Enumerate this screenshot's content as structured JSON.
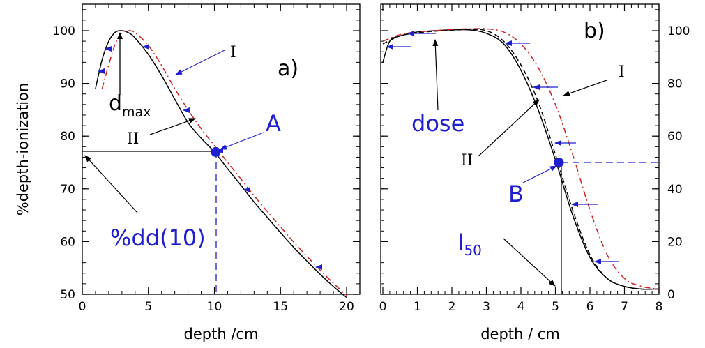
{
  "chart_data": [
    {
      "type": "line",
      "panel_label": "a)",
      "xlabel": "depth /cm",
      "ylabel": "%depth-ionization",
      "xlim": [
        0,
        21
      ],
      "ylim": [
        50,
        105
      ],
      "xticks": [
        "0",
        "5",
        "10",
        "15",
        "20"
      ],
      "yticks": [
        "50",
        "60",
        "70",
        "80",
        "90",
        "100"
      ],
      "series": [
        {
          "name": "",
          "color": "#000000",
          "style": "solid",
          "x": [
            1.0,
            1.5,
            2.0,
            2.5,
            3.0,
            3.5,
            4.0,
            5.0,
            6.0,
            7.0,
            8.0,
            9.0,
            10.0,
            11.0,
            12.0,
            13.0,
            14.0,
            15.0,
            16.0,
            17.0,
            18.0,
            19.0,
            20.0
          ],
          "y": [
            89,
            94.5,
            98,
            99.7,
            100,
            99.6,
            98.6,
            95.5,
            91.5,
            87.0,
            82.6,
            79.6,
            77.0,
            73.8,
            70.7,
            67.5,
            64.6,
            61.7,
            58.9,
            56.3,
            53.8,
            51.5,
            49.4
          ]
        },
        {
          "name": "",
          "color": "#d02020",
          "style": "dashed",
          "x": [
            1.5,
            2.0,
            2.5,
            3.0,
            3.5,
            4.0,
            5.0,
            6.0,
            7.0,
            8.0,
            9.0,
            10.0,
            11.0,
            12.0,
            13.0,
            14.0,
            15.0,
            16.0,
            17.0,
            18.0,
            19.0,
            20.0
          ],
          "y": [
            89,
            93.5,
            97.5,
            99.6,
            100,
            99.6,
            97.2,
            93.4,
            89.0,
            85.0,
            81.4,
            78.2,
            75.0,
            71.9,
            68.7,
            65.7,
            62.8,
            59.9,
            57.2,
            54.6,
            52.1,
            49.8
          ]
        }
      ],
      "points": [
        {
          "label": "A",
          "x": 10.1,
          "y": 77
        }
      ],
      "annotations": {
        "I": "I",
        "II": "II",
        "A": "A",
        "dmax_main": "d",
        "dmax_sub": "max",
        "pdd": "%dd(10)"
      }
    },
    {
      "type": "line",
      "panel_label": "b)",
      "xlabel": "depth / cm",
      "xlim": [
        0,
        8
      ],
      "ylim": [
        0,
        110
      ],
      "xticks": [
        "0",
        "1",
        "2",
        "3",
        "4",
        "5",
        "6",
        "7",
        "8"
      ],
      "yticks": [
        "0",
        "20",
        "40",
        "60",
        "80",
        "100"
      ],
      "series": [
        {
          "name": "",
          "color": "#000000",
          "style": "solid",
          "x": [
            0.0,
            0.2,
            0.5,
            1.0,
            1.5,
            2.0,
            2.5,
            3.0,
            3.5,
            4.0,
            4.5,
            5.0,
            5.5,
            6.0,
            6.5,
            7.0,
            7.5,
            8.0
          ],
          "y": [
            88,
            96,
            98,
            99.5,
            100,
            100.3,
            100.3,
            99,
            95,
            85,
            70,
            51,
            30,
            14,
            6,
            3,
            2,
            2
          ]
        },
        {
          "name": "",
          "color": "#000000",
          "style": "dashed",
          "x": [
            0.0,
            0.5,
            1.0,
            1.5,
            2.0,
            2.5,
            3.0,
            3.5,
            4.0,
            4.5,
            5.0,
            5.5,
            6.0,
            6.5,
            7.0,
            7.5,
            8.0
          ],
          "y": [
            95,
            98,
            99.2,
            99.8,
            100.2,
            100.4,
            100,
            96,
            87,
            73,
            53,
            32,
            15,
            6,
            3,
            2,
            2
          ]
        },
        {
          "name": "",
          "color": "#d02020",
          "style": "dashed",
          "x": [
            0.0,
            0.5,
            1.0,
            1.5,
            2.0,
            2.5,
            3.0,
            3.5,
            4.0,
            4.5,
            5.0,
            5.5,
            6.0,
            6.5,
            7.0,
            7.5,
            8.0
          ],
          "y": [
            96,
            98.5,
            99.5,
            100,
            100.5,
            100.7,
            100.7,
            99.5,
            95,
            86,
            72,
            53,
            32,
            15,
            6,
            3,
            2
          ]
        }
      ],
      "points": [
        {
          "label": "B",
          "x": 5.1,
          "y": 50
        }
      ],
      "annotations": {
        "I": "I",
        "II": "II",
        "B": "B",
        "dose": "dose",
        "i50_main": "I",
        "i50_sub": "50"
      }
    }
  ]
}
